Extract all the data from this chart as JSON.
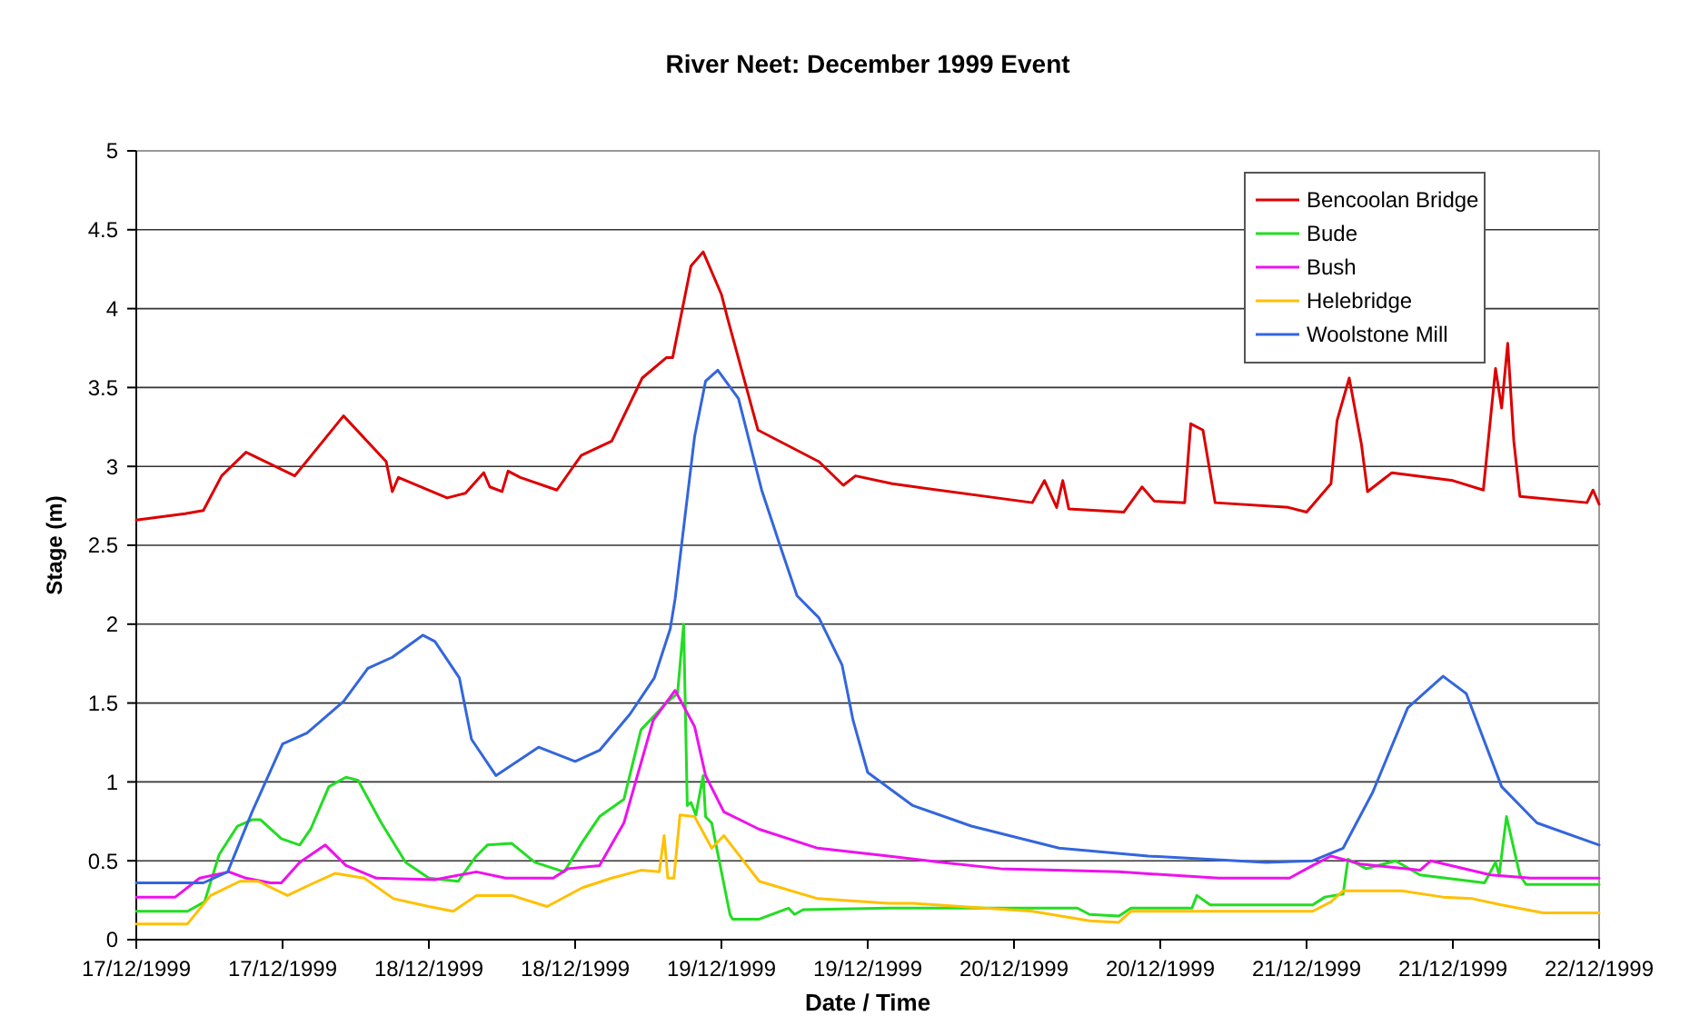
{
  "chart_data": {
    "type": "line",
    "title": "River Neet: December 1999 Event",
    "xlabel": "Date / Time",
    "ylabel": "Stage (m)",
    "xlim": [
      "1999-12-17T00:00",
      "1999-12-22T00:00"
    ],
    "xticks": [
      {
        "value": "1999-12-17T00:00",
        "label": "17/12/1999"
      },
      {
        "value": "1999-12-17T12:00",
        "label": "17/12/1999"
      },
      {
        "value": "1999-12-18T00:00",
        "label": "18/12/1999"
      },
      {
        "value": "1999-12-18T12:00",
        "label": "18/12/1999"
      },
      {
        "value": "1999-12-19T00:00",
        "label": "19/12/1999"
      },
      {
        "value": "1999-12-19T12:00",
        "label": "19/12/1999"
      },
      {
        "value": "1999-12-20T00:00",
        "label": "20/12/1999"
      },
      {
        "value": "1999-12-20T12:00",
        "label": "20/12/1999"
      },
      {
        "value": "1999-12-21T00:00",
        "label": "21/12/1999"
      },
      {
        "value": "1999-12-21T12:00",
        "label": "21/12/1999"
      },
      {
        "value": "1999-12-22T00:00",
        "label": "22/12/1999"
      }
    ],
    "ylim": [
      0,
      5
    ],
    "yticks": [
      0,
      0.5,
      1,
      1.5,
      2,
      2.5,
      3,
      3.5,
      4,
      4.5,
      5
    ],
    "grid": "y",
    "legend": "top right",
    "series": [
      {
        "name": "Bencoolan Bridge",
        "color": "#dd0000",
        "x": [
          "1999-12-17T00:00",
          "1999-12-17T04:00",
          "1999-12-17T05:30",
          "1999-12-17T07:00",
          "1999-12-17T09:00",
          "1999-12-17T13:00",
          "1999-12-17T17:00",
          "1999-12-17T20:30",
          "1999-12-17T21:00",
          "1999-12-17T21:30",
          "1999-12-18T01:30",
          "1999-12-18T03:00",
          "1999-12-18T04:30",
          "1999-12-18T05:00",
          "1999-12-18T06:00",
          "1999-12-18T06:30",
          "1999-12-18T07:30",
          "1999-12-18T10:30",
          "1999-12-18T12:30",
          "1999-12-18T15:00",
          "1999-12-18T17:30",
          "1999-12-18T19:30",
          "1999-12-18T20:00",
          "1999-12-18T21:30",
          "1999-12-18T22:30",
          "1999-12-19T00:00",
          "1999-12-19T00:30",
          "1999-12-19T03:00",
          "1999-12-19T08:00",
          "1999-12-19T10:00",
          "1999-12-19T11:00",
          "1999-12-19T14:00",
          "1999-12-20T01:30",
          "1999-12-20T02:30",
          "1999-12-20T03:30",
          "1999-12-20T04:00",
          "1999-12-20T04:30",
          "1999-12-20T09:00",
          "1999-12-20T10:30",
          "1999-12-20T11:30",
          "1999-12-20T14:00",
          "1999-12-20T14:30",
          "1999-12-20T15:30",
          "1999-12-20T16:30",
          "1999-12-20T22:30",
          "1999-12-21T00:00",
          "1999-12-21T02:00",
          "1999-12-21T02:30",
          "1999-12-21T03:30",
          "1999-12-21T04:30",
          "1999-12-21T05:00",
          "1999-12-21T07:00",
          "1999-12-21T12:00",
          "1999-12-21T14:30",
          "1999-12-21T15:30",
          "1999-12-21T16:00",
          "1999-12-21T16:30",
          "1999-12-21T17:00",
          "1999-12-21T17:30",
          "1999-12-21T23:00",
          "1999-12-21T23:30",
          "1999-12-22T00:00"
        ],
        "values": [
          2.66,
          2.7,
          2.72,
          2.94,
          3.09,
          2.94,
          3.32,
          3.03,
          2.84,
          2.93,
          2.8,
          2.83,
          2.96,
          2.87,
          2.84,
          2.97,
          2.93,
          2.85,
          3.07,
          3.16,
          3.56,
          3.69,
          3.69,
          4.27,
          4.36,
          4.09,
          3.94,
          3.23,
          3.03,
          2.88,
          2.94,
          2.89,
          2.77,
          2.91,
          2.74,
          2.91,
          2.73,
          2.71,
          2.87,
          2.78,
          2.77,
          3.27,
          3.23,
          2.77,
          2.74,
          2.71,
          2.89,
          3.29,
          3.56,
          3.14,
          2.84,
          2.96,
          2.91,
          2.85,
          3.62,
          3.37,
          3.78,
          3.16,
          2.81,
          2.77,
          2.85,
          2.76
        ]
      },
      {
        "name": "Bude",
        "color": "#22dd22",
        "x": [
          "1999-12-17T00:00",
          "1999-12-17T04:12",
          "1999-12-17T05:36",
          "1999-12-17T06:48",
          "1999-12-17T08:18",
          "1999-12-17T09:30",
          "1999-12-17T10:12",
          "1999-12-17T11:54",
          "1999-12-17T13:24",
          "1999-12-17T14:18",
          "1999-12-17T15:48",
          "1999-12-17T17:12",
          "1999-12-17T18:12",
          "1999-12-17T20:06",
          "1999-12-17T22:06",
          "1999-12-18T00:00",
          "1999-12-18T02:24",
          "1999-12-18T03:54",
          "1999-12-18T04:48",
          "1999-12-18T06:48",
          "1999-12-18T08:42",
          "1999-12-18T11:06",
          "1999-12-18T12:36",
          "1999-12-18T14:00",
          "1999-12-18T16:00",
          "1999-12-18T17:24",
          "1999-12-18T19:36",
          "1999-12-18T20:24",
          "1999-12-18T20:54",
          "1999-12-18T21:12",
          "1999-12-18T21:30",
          "1999-12-18T21:54",
          "1999-12-18T22:30",
          "1999-12-18T22:42",
          "1999-12-18T23:12",
          "1999-12-19T00:42",
          "1999-12-19T00:54",
          "1999-12-19T03:06",
          "1999-12-19T05:30",
          "1999-12-19T06:00",
          "1999-12-19T06:42",
          "1999-12-19T13:42",
          "1999-12-20T05:12",
          "1999-12-20T06:12",
          "1999-12-20T08:36",
          "1999-12-20T09:36",
          "1999-12-20T14:36",
          "1999-12-20T15:00",
          "1999-12-20T16:06",
          "1999-12-21T00:30",
          "1999-12-21T01:30",
          "1999-12-21T03:00",
          "1999-12-21T03:24",
          "1999-12-21T04:54",
          "1999-12-21T07:18",
          "1999-12-21T09:18",
          "1999-12-21T14:36",
          "1999-12-21T15:30",
          "1999-12-21T15:48",
          "1999-12-21T16:24",
          "1999-12-21T17:30",
          "1999-12-21T18:00",
          "1999-12-22T00:00"
        ],
        "values": [
          0.18,
          0.18,
          0.24,
          0.54,
          0.72,
          0.76,
          0.76,
          0.64,
          0.6,
          0.7,
          0.97,
          1.03,
          1.01,
          0.74,
          0.49,
          0.39,
          0.37,
          0.53,
          0.6,
          0.61,
          0.49,
          0.43,
          0.62,
          0.78,
          0.89,
          1.33,
          1.51,
          1.56,
          2.0,
          0.85,
          0.87,
          0.79,
          1.04,
          0.78,
          0.74,
          0.16,
          0.13,
          0.13,
          0.2,
          0.16,
          0.19,
          0.2,
          0.2,
          0.16,
          0.15,
          0.2,
          0.2,
          0.28,
          0.22,
          0.22,
          0.27,
          0.29,
          0.51,
          0.45,
          0.5,
          0.41,
          0.36,
          0.49,
          0.41,
          0.78,
          0.41,
          0.35,
          0.35
        ]
      },
      {
        "name": "Bush",
        "color": "#ee11ee",
        "x": [
          "1999-12-17T00:00",
          "1999-12-17T03:12",
          "1999-12-17T05:12",
          "1999-12-17T07:36",
          "1999-12-17T09:00",
          "1999-12-17T11:00",
          "1999-12-17T11:54",
          "1999-12-17T13:24",
          "1999-12-17T15:30",
          "1999-12-17T17:12",
          "1999-12-17T19:42",
          "1999-12-18T00:30",
          "1999-12-18T03:54",
          "1999-12-18T06:18",
          "1999-12-18T10:12",
          "1999-12-18T11:24",
          "1999-12-18T14:00",
          "1999-12-18T16:00",
          "1999-12-18T18:24",
          "1999-12-18T20:12",
          "1999-12-18T21:48",
          "1999-12-18T22:42",
          "1999-12-19T00:12",
          "1999-12-19T03:06",
          "1999-12-19T07:54",
          "1999-12-19T13:42",
          "1999-12-19T18:06",
          "1999-12-19T22:54",
          "1999-12-20T08:36",
          "1999-12-20T16:48",
          "1999-12-20T22:36",
          "1999-12-21T00:30",
          "1999-12-21T02:00",
          "1999-12-21T04:24",
          "1999-12-21T09:18",
          "1999-12-21T10:12",
          "1999-12-21T15:06",
          "1999-12-21T18:24",
          "1999-12-22T00:00"
        ],
        "values": [
          0.27,
          0.27,
          0.39,
          0.43,
          0.39,
          0.36,
          0.36,
          0.49,
          0.6,
          0.47,
          0.39,
          0.38,
          0.43,
          0.39,
          0.39,
          0.45,
          0.47,
          0.74,
          1.39,
          1.58,
          1.35,
          1.04,
          0.81,
          0.7,
          0.58,
          0.53,
          0.49,
          0.45,
          0.43,
          0.39,
          0.39,
          0.47,
          0.53,
          0.48,
          0.44,
          0.5,
          0.41,
          0.39,
          0.39
        ]
      },
      {
        "name": "Helebridge",
        "color": "#ffc000",
        "x": [
          "1999-12-17T00:00",
          "1999-12-17T04:12",
          "1999-12-17T06:06",
          "1999-12-17T08:30",
          "1999-12-17T10:00",
          "1999-12-17T12:24",
          "1999-12-17T14:18",
          "1999-12-17T16:18",
          "1999-12-17T18:42",
          "1999-12-17T21:06",
          "1999-12-18T00:00",
          "1999-12-18T02:00",
          "1999-12-18T03:54",
          "1999-12-18T06:48",
          "1999-12-18T09:42",
          "1999-12-18T12:36",
          "1999-12-18T15:00",
          "1999-12-18T17:24",
          "1999-12-18T18:54",
          "1999-12-18T19:18",
          "1999-12-18T19:36",
          "1999-12-18T20:06",
          "1999-12-18T20:36",
          "1999-12-18T21:48",
          "1999-12-18T23:12",
          "1999-12-19T00:12",
          "1999-12-19T03:06",
          "1999-12-19T07:54",
          "1999-12-19T13:42",
          "1999-12-19T15:42",
          "1999-12-20T01:30",
          "1999-12-20T06:12",
          "1999-12-20T08:36",
          "1999-12-20T09:36",
          "1999-12-21T00:30",
          "1999-12-21T02:00",
          "1999-12-21T03:00",
          "1999-12-21T07:48",
          "1999-12-21T11:12",
          "1999-12-21T13:36",
          "1999-12-21T16:00",
          "1999-12-21T19:24",
          "1999-12-22T00:00"
        ],
        "values": [
          0.1,
          0.1,
          0.28,
          0.37,
          0.37,
          0.28,
          0.35,
          0.42,
          0.39,
          0.26,
          0.21,
          0.18,
          0.28,
          0.28,
          0.21,
          0.33,
          0.39,
          0.44,
          0.43,
          0.66,
          0.39,
          0.39,
          0.79,
          0.78,
          0.58,
          0.66,
          0.37,
          0.26,
          0.23,
          0.23,
          0.18,
          0.12,
          0.11,
          0.18,
          0.18,
          0.24,
          0.31,
          0.31,
          0.27,
          0.26,
          0.22,
          0.17,
          0.17
        ]
      },
      {
        "name": "Woolstone Mill",
        "color": "#3366dd",
        "x": [
          "1999-12-17T00:00",
          "1999-12-17T05:30",
          "1999-12-17T07:30",
          "1999-12-17T09:30",
          "1999-12-17T12:00",
          "1999-12-17T14:00",
          "1999-12-17T17:00",
          "1999-12-17T19:00",
          "1999-12-17T21:00",
          "1999-12-17T23:30",
          "1999-12-18T00:30",
          "1999-12-18T02:30",
          "1999-12-18T03:30",
          "1999-12-18T05:30",
          "1999-12-18T09:00",
          "1999-12-18T12:00",
          "1999-12-18T14:00",
          "1999-12-18T16:30",
          "1999-12-18T18:30",
          "1999-12-18T19:48",
          "1999-12-18T20:12",
          "1999-12-18T21:48",
          "1999-12-18T22:42",
          "1999-12-18T23:42",
          "1999-12-19T01:24",
          "1999-12-19T03:18",
          "1999-12-19T04:48",
          "1999-12-19T06:12",
          "1999-12-19T08:00",
          "1999-12-19T09:54",
          "1999-12-19T10:48",
          "1999-12-19T12:00",
          "1999-12-19T15:42",
          "1999-12-19T20:30",
          "1999-12-20T03:42",
          "1999-12-20T11:00",
          "1999-12-20T20:42",
          "1999-12-21T00:30",
          "1999-12-21T03:00",
          "1999-12-21T05:24",
          "1999-12-21T08:18",
          "1999-12-21T11:12",
          "1999-12-21T13:06",
          "1999-12-21T16:00",
          "1999-12-21T18:54",
          "1999-12-22T00:00"
        ],
        "values": [
          0.36,
          0.36,
          0.43,
          0.81,
          1.24,
          1.31,
          1.51,
          1.72,
          1.79,
          1.93,
          1.89,
          1.66,
          1.27,
          1.04,
          1.22,
          1.13,
          1.2,
          1.43,
          1.66,
          1.97,
          2.16,
          3.19,
          3.54,
          3.61,
          3.43,
          2.85,
          2.5,
          2.18,
          2.04,
          1.74,
          1.39,
          1.06,
          0.85,
          0.72,
          0.58,
          0.53,
          0.49,
          0.5,
          0.58,
          0.93,
          1.47,
          1.67,
          1.56,
          0.97,
          0.74,
          0.6
        ]
      }
    ]
  }
}
